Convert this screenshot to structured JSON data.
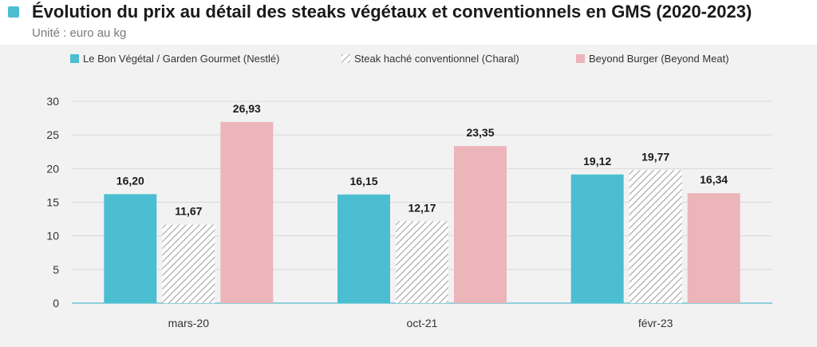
{
  "header": {
    "title": "Évolution du prix au détail des steaks végétaux et conventionnels en GMS (2020-2023)",
    "subtitle": "Unité : euro au kg"
  },
  "colors": {
    "accent": "#4bbfd1",
    "panel": "#f2f2f2",
    "series": [
      "#4bbfd1",
      "hatch-grey",
      "#ebb5ba"
    ]
  },
  "chart_data": {
    "type": "bar",
    "title": "Évolution du prix au détail des steaks végétaux et conventionnels en GMS (2020-2023)",
    "subtitle": "Unité : euro au kg",
    "categories": [
      "mars-20",
      "oct-21",
      "févr-23"
    ],
    "series": [
      {
        "name": "Le Bon Végétal / Garden Gourmet (Nestlé)",
        "values": [
          16.2,
          16.15,
          19.12
        ],
        "labels": [
          "16,20",
          "16,15",
          "19,12"
        ],
        "color": "#4bbfd1",
        "pattern": "solid"
      },
      {
        "name": "Steak haché conventionnel (Charal)",
        "values": [
          11.67,
          12.17,
          19.77
        ],
        "labels": [
          "11,67",
          "12,17",
          "19,77"
        ],
        "color": "#9a9a9a",
        "pattern": "hatch"
      },
      {
        "name": "Beyond Burger (Beyond Meat)",
        "values": [
          26.93,
          23.35,
          16.34
        ],
        "labels": [
          "26,93",
          "23,35",
          "16,34"
        ],
        "color": "#ebb5ba",
        "pattern": "solid"
      }
    ],
    "yticks": [
      "0",
      "5",
      "10",
      "15",
      "20",
      "25",
      "30"
    ],
    "ylim": [
      0,
      30
    ],
    "xlabel": "",
    "ylabel": "",
    "grid": true,
    "legend": "top"
  }
}
